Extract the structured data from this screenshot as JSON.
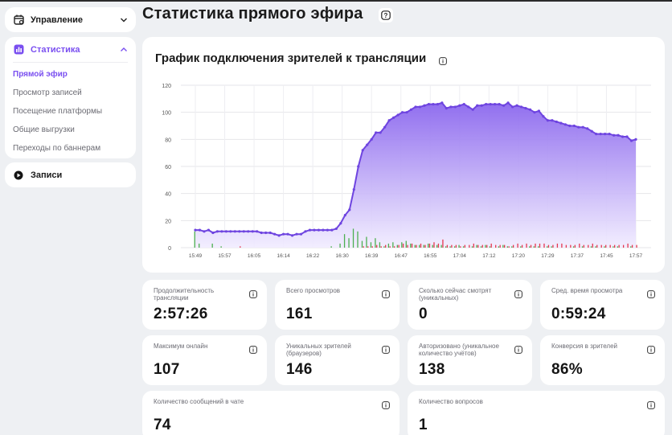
{
  "sidebar": {
    "management": {
      "label": "Управление",
      "icon": "calendar-icon"
    },
    "statistics": {
      "label": "Статистика",
      "icon": "chart-bars-icon",
      "items": [
        {
          "label": "Прямой эфир",
          "active": true
        },
        {
          "label": "Просмотр записей",
          "active": false
        },
        {
          "label": "Посещение платформы",
          "active": false
        },
        {
          "label": "Общие выгрузки",
          "active": false
        },
        {
          "label": "Переходы по баннерам",
          "active": false
        }
      ]
    },
    "records": {
      "label": "Записи",
      "icon": "play-circle-icon"
    }
  },
  "page": {
    "title": "Статистика прямого эфира"
  },
  "chart": {
    "title": "График подключения зрителей к трансляции"
  },
  "chart_data": {
    "type": "area",
    "title": "График подключения зрителей к трансляции",
    "xlabel": "",
    "ylabel": "",
    "ylim": [
      0,
      120
    ],
    "yticks": [
      0,
      20,
      40,
      60,
      80,
      100,
      120
    ],
    "x_tick_labels": [
      "15:49",
      "15:57",
      "16:05",
      "16:14",
      "16:22",
      "16:30",
      "16:39",
      "16:47",
      "16:55",
      "17:04",
      "17:12",
      "17:20",
      "17:29",
      "17:37",
      "17:45",
      "17:57"
    ],
    "grid": true,
    "line_color": "#6e44e0",
    "fill_color_top": "#8b67ee",
    "fill_color_bottom": "#f1ecff",
    "series": [
      {
        "values": [
          13,
          13,
          12,
          13,
          11,
          12,
          12,
          12,
          12,
          12,
          12,
          12,
          12,
          12,
          12,
          11,
          11,
          11,
          10,
          9,
          10,
          10,
          9,
          10,
          10,
          12,
          13,
          13,
          13,
          13,
          13,
          13,
          14,
          18,
          24,
          28,
          43,
          60,
          72,
          76,
          80,
          85,
          85,
          89,
          94,
          96,
          98,
          100,
          100,
          102,
          104,
          104,
          105,
          106,
          106,
          106,
          107,
          103,
          104,
          104,
          105,
          106,
          104,
          102,
          105,
          105,
          106,
          106,
          106,
          106,
          105,
          107,
          104,
          105,
          104,
          103,
          102,
          100,
          101,
          97,
          94,
          94,
          93,
          92,
          91,
          90,
          90,
          89,
          89,
          88,
          86,
          84,
          84,
          84,
          84,
          83,
          83,
          82,
          82,
          79,
          80
        ]
      },
      {
        "type": "bar",
        "color": "#4caf50",
        "values": [
          12,
          3,
          0,
          0,
          3,
          0,
          1,
          0,
          0,
          0,
          0,
          0,
          0,
          0,
          0,
          0,
          0,
          0,
          0,
          0,
          0,
          0,
          0,
          0,
          0,
          0,
          0,
          0,
          0,
          0,
          0,
          1,
          0,
          3,
          10,
          7,
          14,
          12,
          5,
          8,
          4,
          7,
          4,
          1,
          3,
          4,
          2,
          4,
          5,
          3,
          2,
          2,
          2,
          3,
          2,
          2,
          2,
          1,
          1,
          1,
          2,
          1,
          0,
          1,
          2,
          1,
          2,
          1,
          0,
          1,
          2,
          1,
          1,
          0,
          1,
          0,
          1,
          1,
          1,
          0,
          1,
          1,
          0,
          0,
          0,
          0,
          1,
          0,
          1,
          0,
          1,
          1,
          0,
          1,
          0,
          1,
          1,
          0,
          0,
          1,
          0
        ]
      },
      {
        "type": "bar",
        "color": "#e53950",
        "values": [
          0,
          0,
          0,
          0,
          0,
          0,
          0,
          0,
          0,
          0,
          1,
          0,
          0,
          0,
          0,
          0,
          0,
          0,
          0,
          0,
          0,
          0,
          0,
          0,
          0,
          0,
          0,
          0,
          0,
          0,
          0,
          0,
          0,
          0,
          0,
          0,
          0,
          0,
          1,
          1,
          1,
          2,
          1,
          2,
          1,
          1,
          2,
          3,
          2,
          3,
          2,
          3,
          2,
          3,
          4,
          3,
          6,
          2,
          2,
          2,
          1,
          2,
          2,
          3,
          2,
          2,
          2,
          3,
          2,
          2,
          2,
          1,
          2,
          3,
          2,
          3,
          2,
          3,
          3,
          3,
          2,
          2,
          3,
          3,
          2,
          2,
          2,
          3,
          2,
          2,
          3,
          2,
          2,
          2,
          2,
          2,
          2,
          2,
          3,
          2,
          2
        ]
      }
    ]
  },
  "stats": [
    {
      "label": "Продолжительность трансляции",
      "value": "2:57:26"
    },
    {
      "label": "Всего просмотров",
      "value": "161"
    },
    {
      "label": "Сколько сейчас смотрят (уникальных)",
      "value": "0"
    },
    {
      "label": "Сред. время просмотра",
      "value": "0:59:24"
    },
    {
      "label": "Максимум онлайн",
      "value": "107"
    },
    {
      "label": "Уникальных зрителей (браузеров)",
      "value": "146"
    },
    {
      "label": "Авторизовано (уникальное количество учётов)",
      "value": "138"
    },
    {
      "label": "Конверсия в зрителей",
      "value": "86%"
    },
    {
      "label": "Количество сообщений в чате",
      "value": "74"
    },
    {
      "label": "Количество вопросов",
      "value": "1"
    }
  ],
  "colors": {
    "accent": "#7a4ff0",
    "background": "#eef0f3"
  }
}
